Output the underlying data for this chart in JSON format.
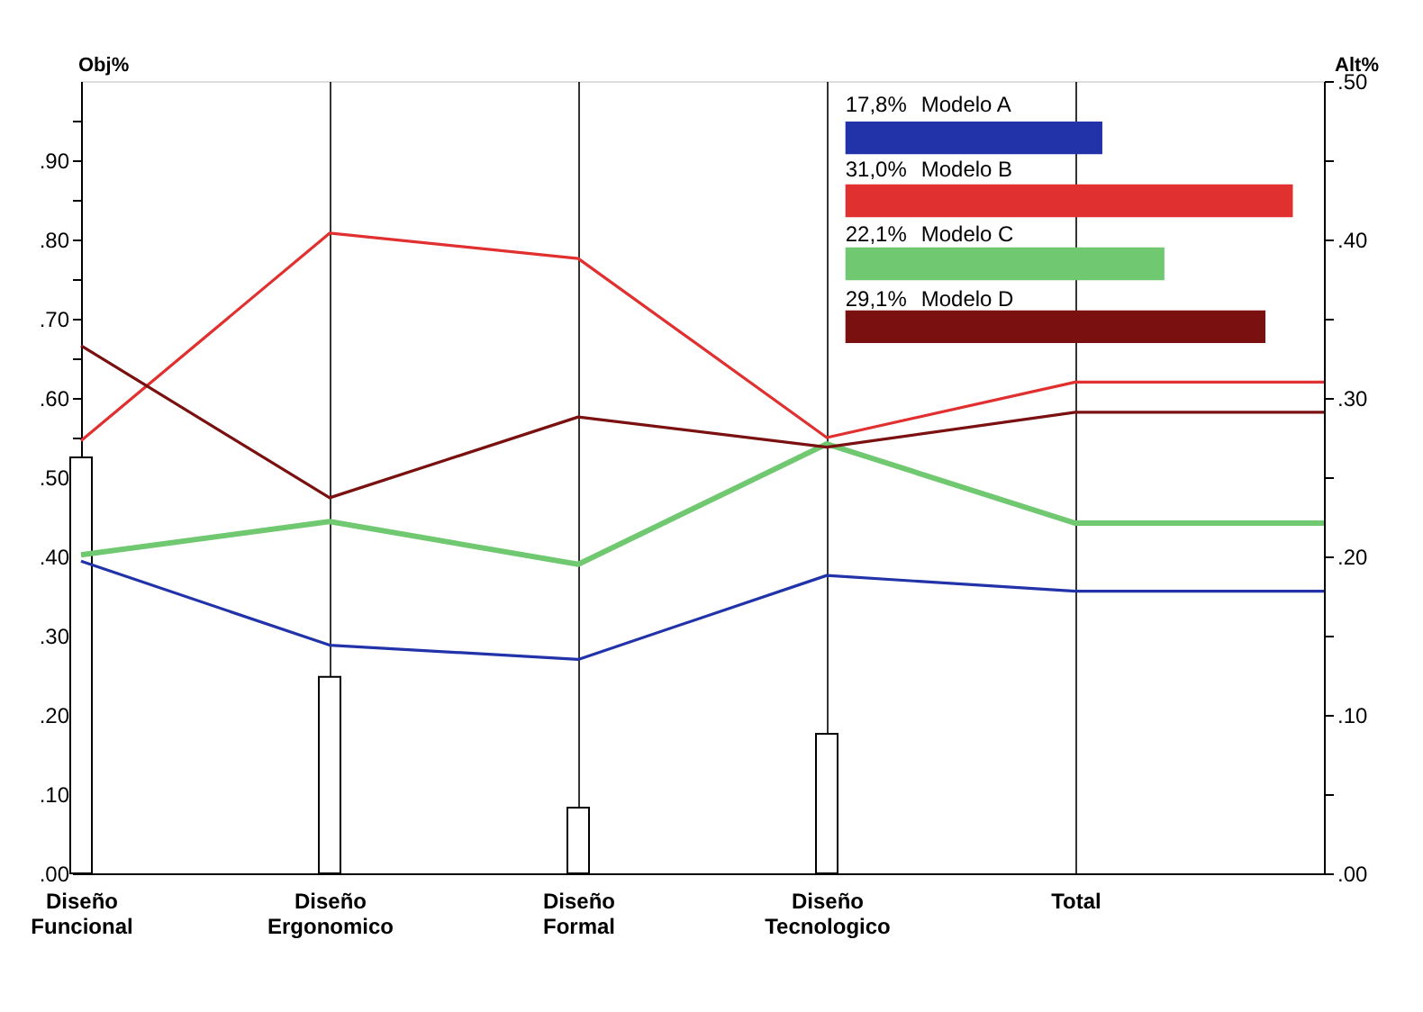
{
  "chart_data": [
    {
      "type": "line",
      "ylabel": "Obj%",
      "y2label": "Alt%",
      "categories": [
        "Diseño Funcional",
        "Diseño Ergonomico",
        "Diseño Formal",
        "Diseño Tecnologico",
        "Total",
        null
      ],
      "series": [
        {
          "type": "bar",
          "color": "#ffffff",
          "values": [
            0.525,
            0.248,
            0.083,
            0.176,
            null,
            null
          ]
        },
        {
          "color": "#2233aa",
          "axis": "y2",
          "values": [
            0.197,
            0.144,
            0.135,
            0.188,
            0.178,
            0.178
          ]
        },
        {
          "color": "#e03030",
          "axis": "y2",
          "values": [
            0.273,
            0.404,
            0.388,
            0.275,
            0.31,
            0.31
          ]
        },
        {
          "color": "#70c870",
          "axis": "y2",
          "values": [
            0.201,
            0.222,
            0.195,
            0.271,
            0.221,
            0.221
          ]
        },
        {
          "color": "#7a1010",
          "axis": "y2",
          "values": [
            0.333,
            0.237,
            0.288,
            0.269,
            0.291,
            0.291
          ]
        }
      ],
      "ylim": [
        0,
        1
      ],
      "yticks": [
        {
          "value": 0,
          "label": ".00"
        },
        {
          "value": 0.05,
          "label": null
        },
        {
          "value": 0.1,
          "label": ".10"
        },
        {
          "value": 0.15,
          "label": null
        },
        {
          "value": 0.2,
          "label": ".20"
        },
        {
          "value": 0.25,
          "label": null
        },
        {
          "value": 0.3,
          "label": ".30"
        },
        {
          "value": 0.35,
          "label": null
        },
        {
          "value": 0.4,
          "label": ".40"
        },
        {
          "value": 0.45,
          "label": null
        },
        {
          "value": 0.5,
          "label": ".50"
        },
        {
          "value": 0.55,
          "label": null
        },
        {
          "value": 0.6,
          "label": ".60"
        },
        {
          "value": 0.65,
          "label": null
        },
        {
          "value": 0.7,
          "label": ".70"
        },
        {
          "value": 0.75,
          "label": null
        },
        {
          "value": 0.8,
          "label": ".80"
        },
        {
          "value": 0.85,
          "label": null
        },
        {
          "value": 0.9,
          "label": ".90"
        },
        {
          "value": 0.95,
          "label": null
        }
      ],
      "y2lim": [
        0,
        0.5
      ],
      "y2ticks": [
        {
          "value": 0,
          "label": ".00"
        },
        {
          "value": 0.05,
          "label": null
        },
        {
          "value": 0.1,
          "label": ".10"
        },
        {
          "value": 0.15,
          "label": null
        },
        {
          "value": 0.2,
          "label": ".20"
        },
        {
          "value": 0.25,
          "label": null
        },
        {
          "value": 0.3,
          "label": ".30"
        },
        {
          "value": 0.35,
          "label": null
        },
        {
          "value": 0.4,
          "label": ".40"
        },
        {
          "value": 0.45,
          "label": null
        },
        {
          "value": 0.5,
          "label": ".50"
        }
      ],
      "grid": "x",
      "line_style": "solid",
      "marker": "none"
    },
    {
      "type": "bar",
      "orientation": "horizontal",
      "categories": [
        "Modelo A",
        "Modelo B",
        "Modelo C",
        "Modelo D"
      ],
      "values": [
        17.8,
        31.0,
        22.1,
        29.1
      ],
      "colors": [
        "#2233aa",
        "#e03030",
        "#70c870",
        "#7a1010"
      ],
      "value_labels": [
        "17,8%",
        "31,0%",
        "22,1%",
        "29,1%"
      ]
    }
  ]
}
